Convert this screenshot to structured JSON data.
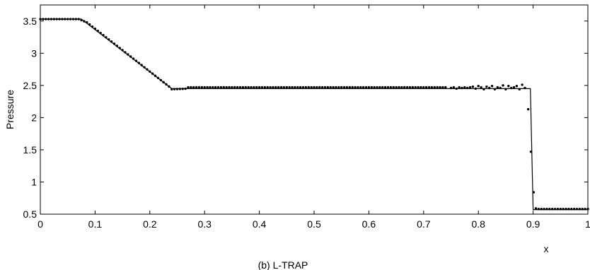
{
  "chart_data": {
    "type": "line",
    "title": "",
    "caption": "(b) L-TRAP",
    "xlabel": "x",
    "ylabel": "Pressure",
    "xlim": [
      0,
      1
    ],
    "ylim": [
      0.5,
      3.75
    ],
    "xticks": [
      "0",
      "0.1",
      "0.2",
      "0.3",
      "0.4",
      "0.5",
      "0.6",
      "0.7",
      "0.8",
      "0.9",
      "1"
    ],
    "yticks": [
      "0.5",
      "1",
      "1.5",
      "2",
      "2.5",
      "3",
      "3.5"
    ],
    "grid": false,
    "legend": "none",
    "series": [
      {
        "style": "solid-line",
        "color": "#000000",
        "points": [
          [
            0,
            3.53
          ],
          [
            0.075,
            3.53
          ],
          [
            0.24,
            2.45
          ],
          [
            0.895,
            2.45
          ],
          [
            0.9,
            0.57
          ],
          [
            1.0,
            0.57
          ]
        ]
      },
      {
        "style": "dots",
        "color": "#000000",
        "segments": [
          {
            "x_from": 0.0,
            "x_to": 0.07,
            "y_from": 3.53,
            "y_to": 3.53
          },
          {
            "x_from": 0.07,
            "x_to": 0.085,
            "y_from": 3.53,
            "y_to": 3.48
          },
          {
            "x_from": 0.085,
            "x_to": 0.24,
            "y_from": 3.48,
            "y_to": 2.45
          },
          {
            "x_from": 0.24,
            "x_to": 0.27,
            "y_from": 2.44,
            "y_to": 2.45
          },
          {
            "x_from": 0.27,
            "x_to": 0.745,
            "y_from": 2.47,
            "y_to": 2.47
          }
        ],
        "points": [
          [
            0.75,
            2.46
          ],
          [
            0.755,
            2.47
          ],
          [
            0.76,
            2.45
          ],
          [
            0.765,
            2.47
          ],
          [
            0.77,
            2.46
          ],
          [
            0.775,
            2.47
          ],
          [
            0.78,
            2.46
          ],
          [
            0.785,
            2.47
          ],
          [
            0.79,
            2.48
          ],
          [
            0.795,
            2.45
          ],
          [
            0.8,
            2.49
          ],
          [
            0.805,
            2.47
          ],
          [
            0.81,
            2.44
          ],
          [
            0.815,
            2.48
          ],
          [
            0.82,
            2.46
          ],
          [
            0.825,
            2.49
          ],
          [
            0.83,
            2.44
          ],
          [
            0.835,
            2.47
          ],
          [
            0.84,
            2.46
          ],
          [
            0.845,
            2.5
          ],
          [
            0.85,
            2.44
          ],
          [
            0.855,
            2.49
          ],
          [
            0.86,
            2.46
          ],
          [
            0.865,
            2.47
          ],
          [
            0.87,
            2.49
          ],
          [
            0.875,
            2.44
          ],
          [
            0.88,
            2.51
          ],
          [
            0.885,
            2.46
          ],
          [
            0.891,
            2.13
          ],
          [
            0.896,
            1.47
          ],
          [
            0.901,
            0.84
          ],
          [
            0.905,
            0.59
          ],
          [
            0.91,
            0.58
          ],
          [
            0.915,
            0.58
          ],
          [
            0.92,
            0.58
          ],
          [
            0.925,
            0.58
          ],
          [
            0.93,
            0.58
          ],
          [
            0.935,
            0.58
          ],
          [
            0.94,
            0.58
          ],
          [
            0.945,
            0.58
          ],
          [
            0.95,
            0.58
          ],
          [
            0.955,
            0.58
          ],
          [
            0.96,
            0.58
          ],
          [
            0.965,
            0.58
          ],
          [
            0.97,
            0.58
          ],
          [
            0.975,
            0.58
          ],
          [
            0.98,
            0.58
          ],
          [
            0.985,
            0.58
          ],
          [
            0.99,
            0.58
          ],
          [
            0.995,
            0.58
          ],
          [
            1.0,
            0.58
          ]
        ]
      }
    ]
  }
}
